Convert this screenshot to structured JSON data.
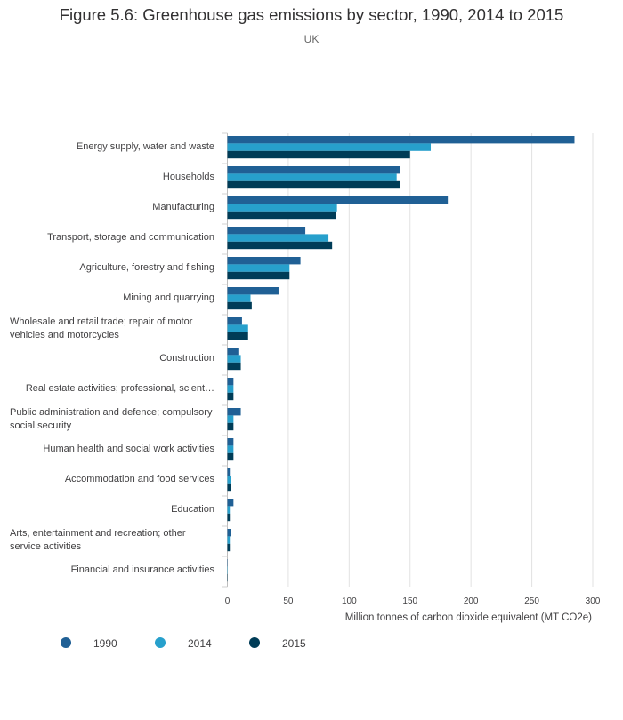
{
  "chart_data": {
    "type": "bar",
    "orientation": "horizontal",
    "title": "Figure 5.6: Greenhouse gas emissions by sector, 1990, 2014 to 2015",
    "subtitle": "UK",
    "xlabel": "Million tonnes of carbon dioxide equivalent (MT CO2e)",
    "ylabel": "",
    "xlim": [
      0,
      300
    ],
    "xticks": [
      0,
      50,
      100,
      150,
      200,
      250,
      300
    ],
    "grid": true,
    "legend_position": "bottom-left",
    "categories": [
      "Energy supply, water and waste",
      "Households",
      "Manufacturing",
      "Transport, storage and communication",
      "Agriculture, forestry and fishing",
      "Mining and quarrying",
      "Wholesale and retail trade; repair of motor vehicles and motorcycles",
      "Construction",
      "Real estate activities; professional, scient…",
      "Public administration and defence; compulsory social security",
      "Human health and social work activities",
      "Accommodation and food services",
      "Education",
      "Arts, entertainment and recreation; other service activities",
      "Financial and insurance activities"
    ],
    "series": [
      {
        "name": "1990",
        "color": "#206095",
        "values": [
          285,
          142,
          181,
          64,
          60,
          42,
          12,
          9,
          5,
          11,
          5,
          2,
          5,
          3,
          0.3
        ]
      },
      {
        "name": "2014",
        "color": "#27a0cc",
        "values": [
          167,
          139,
          90,
          83,
          51,
          19,
          17,
          11,
          5,
          5,
          5,
          3,
          2,
          2,
          0.3
        ]
      },
      {
        "name": "2015",
        "color": "#003c57",
        "values": [
          150,
          142,
          89,
          86,
          51,
          20,
          17,
          11,
          5,
          5,
          5,
          3,
          2,
          2,
          0.3
        ]
      }
    ]
  }
}
